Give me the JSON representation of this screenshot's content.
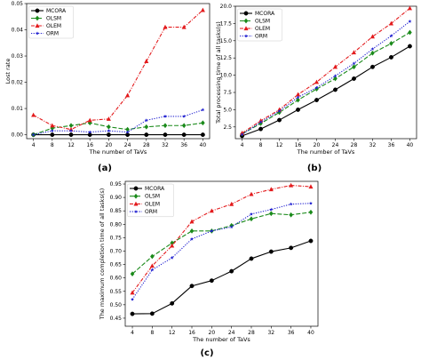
{
  "chart_data": [
    {
      "type": "line",
      "panel_label": "(a)",
      "xlabel": "The number of TaVs",
      "ylabel": "Lost rate",
      "x": [
        4,
        8,
        12,
        16,
        20,
        24,
        28,
        32,
        36,
        40
      ],
      "xticks": [
        "4",
        "8",
        "12",
        "16",
        "20",
        "24",
        "28",
        "32",
        "36",
        "40"
      ],
      "ylim": [
        -0.0015,
        0.05
      ],
      "yticks": [
        0.0,
        0.01,
        0.02,
        0.03,
        0.04,
        0.05
      ],
      "ytick_labels": [
        "0.00",
        "0.01",
        "0.02",
        "0.03",
        "0.04",
        "0.05"
      ],
      "legend_position": "top-left",
      "series": [
        {
          "name": "MCORA",
          "color": "#000000",
          "dash": "",
          "marker": "circle",
          "values": [
            0.0,
            0.0,
            0.0,
            0.0,
            0.0,
            0.0,
            0.0,
            0.0,
            0.0,
            0.0
          ]
        },
        {
          "name": "OLSM",
          "color": "#1a8a1a",
          "dash": "5,2",
          "marker": "diamond",
          "values": [
            0.0,
            0.0025,
            0.0035,
            0.0045,
            0.003,
            0.002,
            0.003,
            0.0035,
            0.0035,
            0.0045
          ]
        },
        {
          "name": "OLEM",
          "color": "#e31a1c",
          "dash": "4,1.5,1,1.5",
          "marker": "triangle",
          "values": [
            0.0075,
            0.0035,
            0.002,
            0.0055,
            0.006,
            0.015,
            0.028,
            0.041,
            0.041,
            0.0475
          ]
        },
        {
          "name": "ORM",
          "color": "#1f1fd0",
          "dash": "1.2,1.5",
          "marker": "star",
          "values": [
            0.0,
            0.0015,
            0.0015,
            0.001,
            0.0015,
            0.001,
            0.0055,
            0.007,
            0.007,
            0.0095
          ]
        }
      ]
    },
    {
      "type": "line",
      "panel_label": "(b)",
      "xlabel": "The number of TaVs",
      "ylabel": "Total processing time of all tasks(s)",
      "x": [
        4,
        8,
        12,
        16,
        20,
        24,
        28,
        32,
        36,
        40
      ],
      "xticks": [
        "4",
        "8",
        "12",
        "16",
        "20",
        "24",
        "28",
        "32",
        "36",
        "40"
      ],
      "ylim": [
        0.8,
        20.0
      ],
      "yticks": [
        2.5,
        5.0,
        7.5,
        10.0,
        12.5,
        15.0,
        17.5,
        20.0
      ],
      "ytick_labels": [
        "2.5",
        "5.0",
        "7.5",
        "10.0",
        "12.5",
        "15.0",
        "17.5",
        "20.0"
      ],
      "legend_position": "top-left",
      "series": [
        {
          "name": "MCORA",
          "color": "#000000",
          "dash": "",
          "marker": "circle",
          "values": [
            1.2,
            2.2,
            3.5,
            5.0,
            6.4,
            7.9,
            9.5,
            11.2,
            12.6,
            14.2
          ]
        },
        {
          "name": "OLSM",
          "color": "#1a8a1a",
          "dash": "5,2",
          "marker": "diamond",
          "values": [
            1.5,
            3.0,
            4.6,
            6.4,
            8.0,
            9.5,
            11.2,
            13.2,
            14.6,
            16.2
          ]
        },
        {
          "name": "OLEM",
          "color": "#e31a1c",
          "dash": "4,1.5,1,1.5",
          "marker": "triangle",
          "values": [
            1.6,
            3.4,
            5.0,
            7.2,
            9.0,
            11.2,
            13.3,
            15.6,
            17.5,
            19.7
          ]
        },
        {
          "name": "ORM",
          "color": "#1f1fd0",
          "dash": "1.2,1.5",
          "marker": "star",
          "values": [
            1.4,
            3.2,
            4.8,
            6.8,
            8.2,
            9.9,
            11.7,
            13.8,
            15.7,
            17.8
          ]
        }
      ]
    },
    {
      "type": "line",
      "panel_label": "(c)",
      "xlabel": "The number of TaVs",
      "ylabel": "The maximum completion time of all tasks(s)",
      "x": [
        4,
        8,
        12,
        16,
        20,
        24,
        28,
        32,
        36,
        40
      ],
      "xticks": [
        "4",
        "8",
        "12",
        "16",
        "20",
        "24",
        "28",
        "32",
        "36",
        "40"
      ],
      "ylim": [
        0.42,
        0.96
      ],
      "yticks": [
        0.45,
        0.5,
        0.55,
        0.6,
        0.65,
        0.7,
        0.75,
        0.8,
        0.85,
        0.9,
        0.95
      ],
      "ytick_labels": [
        "0.45",
        "0.50",
        "0.55",
        "0.60",
        "0.65",
        "0.70",
        "0.75",
        "0.80",
        "0.85",
        "0.90",
        "0.95"
      ],
      "legend_position": "top-left",
      "series": [
        {
          "name": "MCORA",
          "color": "#000000",
          "dash": "",
          "marker": "circle",
          "values": [
            0.466,
            0.467,
            0.505,
            0.57,
            0.59,
            0.625,
            0.672,
            0.698,
            0.712,
            0.738
          ]
        },
        {
          "name": "OLSM",
          "color": "#1a8a1a",
          "dash": "5,2",
          "marker": "diamond",
          "values": [
            0.615,
            0.68,
            0.73,
            0.775,
            0.775,
            0.795,
            0.82,
            0.84,
            0.835,
            0.845
          ]
        },
        {
          "name": "OLEM",
          "color": "#e31a1c",
          "dash": "4,1.5,1,1.5",
          "marker": "triangle",
          "values": [
            0.545,
            0.645,
            0.72,
            0.81,
            0.85,
            0.875,
            0.912,
            0.93,
            0.945,
            0.94
          ]
        },
        {
          "name": "ORM",
          "color": "#1f1fd0",
          "dash": "1.2,1.5",
          "marker": "star",
          "values": [
            0.52,
            0.63,
            0.675,
            0.745,
            0.775,
            0.79,
            0.838,
            0.855,
            0.875,
            0.878
          ]
        }
      ]
    }
  ]
}
